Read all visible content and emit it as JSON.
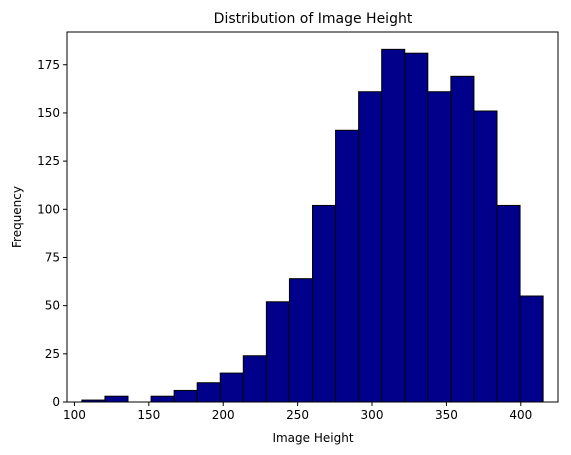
{
  "chart_data": {
    "type": "bar",
    "title": "Distribution of Image Height",
    "xlabel": "Image Height",
    "ylabel": "Frequency",
    "xlim": [
      95,
      425
    ],
    "ylim": [
      0,
      192
    ],
    "bar_color": "#00008b",
    "edge_color": "#000000",
    "grid": false,
    "xticks": [
      100,
      150,
      200,
      250,
      300,
      350,
      400
    ],
    "yticks": [
      0,
      25,
      50,
      75,
      100,
      125,
      150,
      175
    ],
    "bins": [
      {
        "x0": 105.0,
        "x1": 120.5,
        "count": 1
      },
      {
        "x0": 120.5,
        "x1": 136.0,
        "count": 3
      },
      {
        "x0": 136.0,
        "x1": 151.5,
        "count": 0
      },
      {
        "x0": 151.5,
        "x1": 167.0,
        "count": 3
      },
      {
        "x0": 167.0,
        "x1": 182.5,
        "count": 6
      },
      {
        "x0": 182.5,
        "x1": 198.0,
        "count": 10
      },
      {
        "x0": 198.0,
        "x1": 213.5,
        "count": 15
      },
      {
        "x0": 213.5,
        "x1": 229.0,
        "count": 24
      },
      {
        "x0": 229.0,
        "x1": 244.5,
        "count": 52
      },
      {
        "x0": 244.5,
        "x1": 260.0,
        "count": 64
      },
      {
        "x0": 260.0,
        "x1": 275.5,
        "count": 102
      },
      {
        "x0": 275.5,
        "x1": 291.0,
        "count": 141
      },
      {
        "x0": 291.0,
        "x1": 306.5,
        "count": 161
      },
      {
        "x0": 306.5,
        "x1": 322.0,
        "count": 183
      },
      {
        "x0": 322.0,
        "x1": 337.5,
        "count": 181
      },
      {
        "x0": 337.5,
        "x1": 353.0,
        "count": 161
      },
      {
        "x0": 353.0,
        "x1": 368.5,
        "count": 169
      },
      {
        "x0": 368.5,
        "x1": 384.0,
        "count": 151
      },
      {
        "x0": 384.0,
        "x1": 399.5,
        "count": 102
      },
      {
        "x0": 399.5,
        "x1": 415.0,
        "count": 55
      }
    ]
  }
}
